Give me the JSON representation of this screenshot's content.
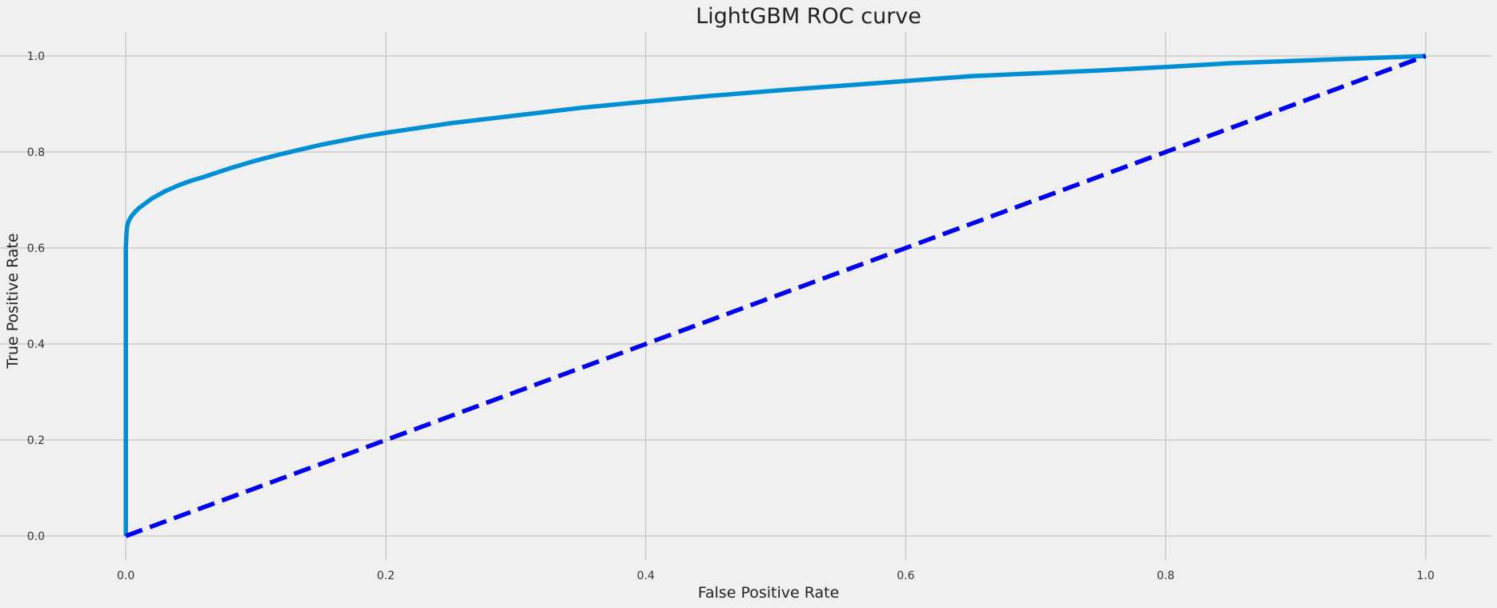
{
  "chart_data": {
    "type": "line",
    "title": "LightGBM ROC curve",
    "xlabel": "False Positive Rate",
    "ylabel": "True Positive Rate",
    "xlim": [
      -0.05,
      1.05
    ],
    "ylim": [
      -0.05,
      1.05
    ],
    "xticks": [
      0.0,
      0.2,
      0.4,
      0.6,
      0.8,
      1.0
    ],
    "xtick_labels": [
      "0.0",
      "0.2",
      "0.4",
      "0.6",
      "0.8",
      "1.0"
    ],
    "yticks": [
      0.0,
      0.2,
      0.4,
      0.6,
      0.8,
      1.0
    ],
    "ytick_labels": [
      "0.0",
      "0.2",
      "0.4",
      "0.6",
      "0.8",
      "1.0"
    ],
    "grid": true,
    "background_color": "#f0f0f0",
    "grid_color": "#cbcbcb",
    "series": [
      {
        "style": "solid",
        "color": "#008fd5",
        "x": [
          0.0,
          0.0,
          0.0,
          0.0005,
          0.001,
          0.002,
          0.004,
          0.007,
          0.01,
          0.015,
          0.02,
          0.03,
          0.04,
          0.05,
          0.06,
          0.08,
          0.1,
          0.12,
          0.15,
          0.18,
          0.2,
          0.25,
          0.3,
          0.35,
          0.4,
          0.45,
          0.5,
          0.55,
          0.6,
          0.65,
          0.7,
          0.75,
          0.8,
          0.85,
          0.9,
          0.95,
          1.0
        ],
        "y": [
          0.0,
          0.5,
          0.6,
          0.63,
          0.645,
          0.655,
          0.665,
          0.675,
          0.683,
          0.693,
          0.703,
          0.718,
          0.73,
          0.74,
          0.748,
          0.766,
          0.782,
          0.796,
          0.815,
          0.831,
          0.84,
          0.86,
          0.876,
          0.892,
          0.905,
          0.917,
          0.928,
          0.938,
          0.948,
          0.958,
          0.964,
          0.97,
          0.977,
          0.985,
          0.99,
          0.995,
          1.0
        ]
      },
      {
        "style": "dashed",
        "color": "#0000ee",
        "x": [
          0.0,
          1.0
        ],
        "y": [
          0.0,
          1.0
        ]
      }
    ]
  }
}
